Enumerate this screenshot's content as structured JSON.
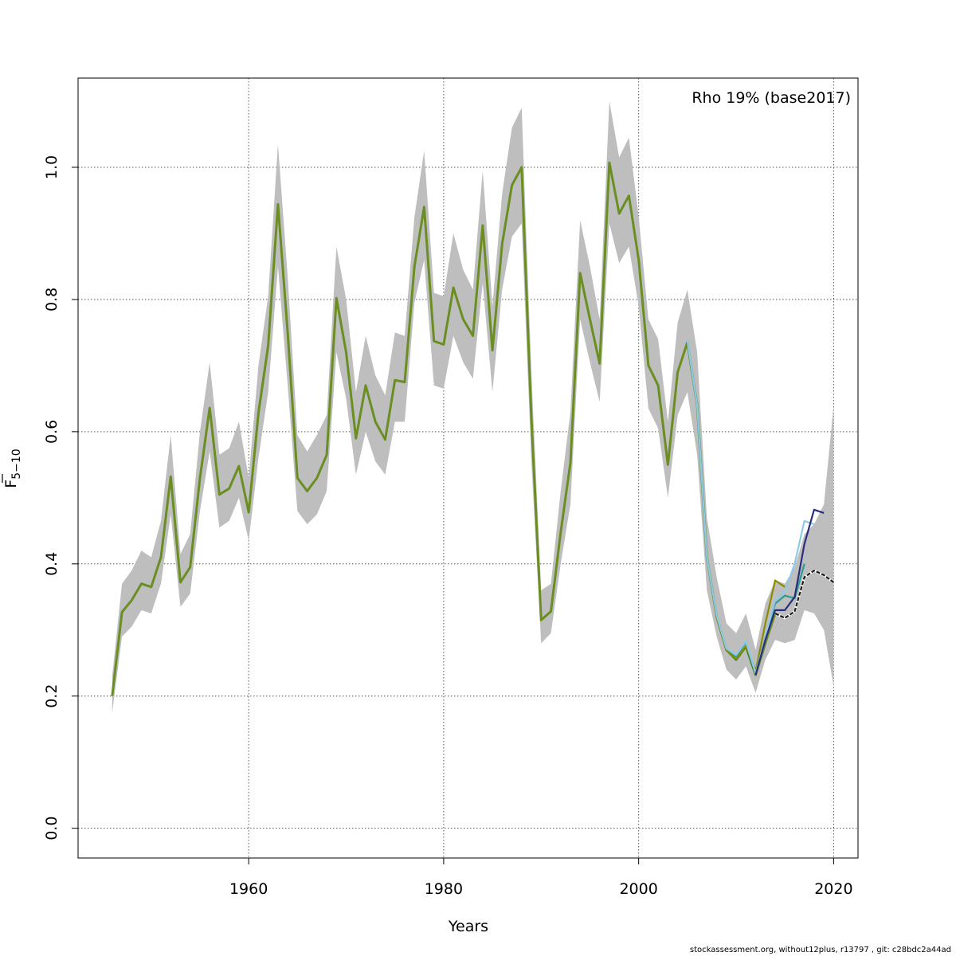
{
  "chart_data": {
    "type": "line",
    "annotation": "Rho 19% (base2017)",
    "xlabel": "Years",
    "ylabel_main": "F",
    "ylabel_sub": "5−10",
    "xlim": [
      1942.5,
      2022.5
    ],
    "ylim": [
      -0.045,
      1.135
    ],
    "x_ticks": [
      1960,
      1980,
      2000,
      2020
    ],
    "y_ticks": [
      0.0,
      0.2,
      0.4,
      0.6,
      0.8,
      1.0
    ],
    "y_tick_labels": [
      "0.0",
      "0.2",
      "0.4",
      "0.6",
      "0.8",
      "1.0"
    ],
    "grid": true,
    "colors": {
      "band": "#bebebe",
      "base": "#6b8e23",
      "peel_olive": "#8b8b00",
      "peel_green": "#1e7b3a",
      "peel_teal": "#2a9d8f",
      "peel_light": "#8ecae6",
      "peel_navy": "#2b2d7e",
      "peel_black": "#1a1a1a"
    },
    "confidence_band": {
      "x": [
        1946,
        1947,
        1948,
        1949,
        1950,
        1951,
        1952,
        1953,
        1954,
        1955,
        1956,
        1957,
        1958,
        1959,
        1960,
        1961,
        1962,
        1963,
        1964,
        1965,
        1966,
        1967,
        1968,
        1969,
        1970,
        1971,
        1972,
        1973,
        1974,
        1975,
        1976,
        1977,
        1978,
        1979,
        1980,
        1981,
        1982,
        1983,
        1984,
        1985,
        1986,
        1987,
        1988,
        1989,
        1990,
        1991,
        1992,
        1993,
        1994,
        1995,
        1996,
        1997,
        1998,
        1999,
        2000,
        2001,
        2002,
        2003,
        2004,
        2005,
        2006,
        2007,
        2008,
        2009,
        2010,
        2011,
        2012,
        2013,
        2014,
        2015,
        2016,
        2017,
        2018,
        2019,
        2020
      ],
      "lower": [
        0.175,
        0.29,
        0.305,
        0.33,
        0.325,
        0.37,
        0.475,
        0.335,
        0.355,
        0.48,
        0.57,
        0.455,
        0.465,
        0.5,
        0.435,
        0.56,
        0.66,
        0.85,
        0.67,
        0.48,
        0.46,
        0.475,
        0.51,
        0.72,
        0.65,
        0.535,
        0.6,
        0.555,
        0.535,
        0.615,
        0.615,
        0.795,
        0.86,
        0.67,
        0.665,
        0.745,
        0.705,
        0.68,
        0.825,
        0.66,
        0.815,
        0.895,
        0.915,
        0.555,
        0.28,
        0.295,
        0.4,
        0.49,
        0.77,
        0.705,
        0.645,
        0.915,
        0.855,
        0.88,
        0.79,
        0.635,
        0.605,
        0.5,
        0.625,
        0.66,
        0.565,
        0.36,
        0.29,
        0.24,
        0.225,
        0.245,
        0.205,
        0.255,
        0.285,
        0.28,
        0.285,
        0.33,
        0.325,
        0.3,
        0.215
      ],
      "upper": [
        0.23,
        0.37,
        0.39,
        0.42,
        0.41,
        0.465,
        0.595,
        0.415,
        0.445,
        0.6,
        0.705,
        0.565,
        0.575,
        0.615,
        0.53,
        0.7,
        0.805,
        1.035,
        0.835,
        0.595,
        0.57,
        0.595,
        0.625,
        0.88,
        0.8,
        0.66,
        0.745,
        0.685,
        0.655,
        0.75,
        0.745,
        0.925,
        1.025,
        0.81,
        0.805,
        0.9,
        0.845,
        0.815,
        0.995,
        0.79,
        0.96,
        1.06,
        1.09,
        0.69,
        0.36,
        0.37,
        0.51,
        0.63,
        0.92,
        0.85,
        0.77,
        1.1,
        1.015,
        1.045,
        0.925,
        0.77,
        0.74,
        0.615,
        0.765,
        0.815,
        0.72,
        0.47,
        0.38,
        0.31,
        0.295,
        0.325,
        0.27,
        0.34,
        0.375,
        0.37,
        0.395,
        0.445,
        0.46,
        0.49,
        0.64
      ]
    },
    "series": [
      {
        "name": "base",
        "color": "#6b8e23",
        "x": [
          1946,
          1947,
          1948,
          1949,
          1950,
          1951,
          1952,
          1953,
          1954,
          1955,
          1956,
          1957,
          1958,
          1959,
          1960,
          1961,
          1962,
          1963,
          1964,
          1965,
          1966,
          1967,
          1968,
          1969,
          1970,
          1971,
          1972,
          1973,
          1974,
          1975,
          1976,
          1977,
          1978,
          1979,
          1980,
          1981,
          1982,
          1983,
          1984,
          1985,
          1986,
          1987,
          1988,
          1989,
          1990,
          1991,
          1992,
          1993,
          1994,
          1995,
          1996,
          1997,
          1998,
          1999,
          2000,
          2001,
          2002,
          2003,
          2004,
          2005,
          2006,
          2007,
          2008,
          2009,
          2010,
          2011,
          2012,
          2013,
          2014,
          2015,
          2016,
          2017,
          2018,
          2019,
          2020
        ],
        "y": [
          0.2,
          0.327,
          0.345,
          0.37,
          0.365,
          0.41,
          0.532,
          0.372,
          0.395,
          0.53,
          0.636,
          0.505,
          0.514,
          0.548,
          0.478,
          0.628,
          0.73,
          0.944,
          0.75,
          0.53,
          0.51,
          0.53,
          0.565,
          0.802,
          0.72,
          0.59,
          0.67,
          0.615,
          0.588,
          0.678,
          0.675,
          0.85,
          0.94,
          0.737,
          0.732,
          0.818,
          0.77,
          0.745,
          0.912,
          0.723,
          0.884,
          0.973,
          1.0,
          0.62,
          0.315,
          0.328,
          0.448,
          0.553,
          0.84,
          0.77,
          0.703,
          1.007,
          0.93,
          0.957,
          0.86,
          0.7,
          0.67,
          0.55,
          0.69,
          0.735,
          0.64,
          0.41,
          0.32,
          0.27,
          0.255,
          0.275,
          0.232,
          0.28,
          0.325,
          0.318,
          0.328,
          0.38,
          0.39,
          0.383,
          0.372
        ],
        "dashed": true,
        "dashed_from": 2014
      },
      {
        "name": "retro_2012",
        "color": "#1e7b3a",
        "x": [
          2005,
          2006,
          2007,
          2008,
          2009,
          2010,
          2011,
          2012
        ],
        "y": [
          0.735,
          0.64,
          0.41,
          0.32,
          0.27,
          0.255,
          0.275,
          0.232
        ]
      },
      {
        "name": "retro_2013",
        "color": "#8b8b00",
        "x": [
          2005,
          2006,
          2007,
          2008,
          2009,
          2010,
          2011,
          2012,
          2013,
          2014,
          2015
        ],
        "y": [
          0.735,
          0.64,
          0.41,
          0.32,
          0.27,
          0.256,
          0.276,
          0.238,
          0.31,
          0.375,
          0.365
        ]
      },
      {
        "name": "retro_2014",
        "color": "#2a9d8f",
        "x": [
          2005,
          2006,
          2007,
          2008,
          2009,
          2010,
          2011,
          2012,
          2013,
          2014,
          2015,
          2016,
          2017
        ],
        "y": [
          0.738,
          0.64,
          0.41,
          0.322,
          0.272,
          0.26,
          0.282,
          0.234,
          0.29,
          0.34,
          0.352,
          0.348,
          0.4
        ]
      },
      {
        "name": "retro_2015",
        "color": "#8ecae6",
        "x": [
          2005,
          2006,
          2007,
          2008,
          2009,
          2010,
          2011,
          2012,
          2013,
          2014,
          2015,
          2016,
          2017,
          2018
        ],
        "y": [
          0.738,
          0.64,
          0.41,
          0.322,
          0.272,
          0.262,
          0.283,
          0.234,
          0.29,
          0.345,
          0.358,
          0.4,
          0.465,
          0.46
        ]
      },
      {
        "name": "retro_2016",
        "color": "#2b2d7e",
        "x": [
          2012,
          2013,
          2014,
          2015,
          2016,
          2017,
          2018,
          2019
        ],
        "y": [
          0.232,
          0.285,
          0.33,
          0.33,
          0.35,
          0.43,
          0.482,
          0.477
        ]
      }
    ]
  },
  "footer": "stockassessment.org, without12plus, r13797 , git: c28bdc2a44ad"
}
